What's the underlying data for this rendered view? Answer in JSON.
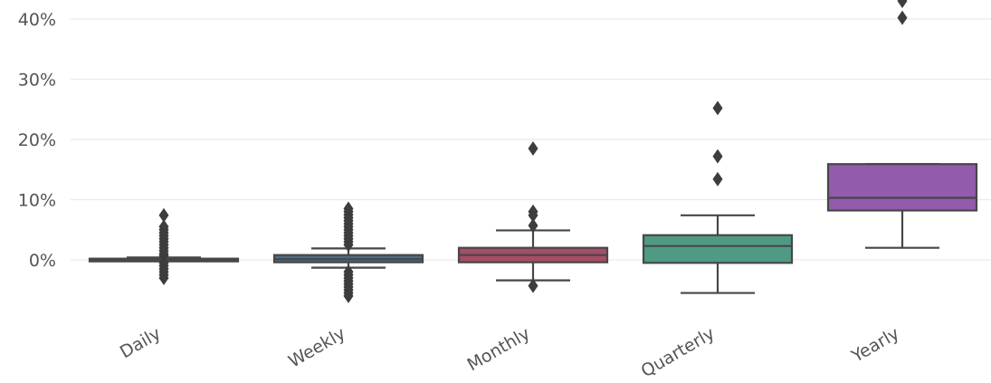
{
  "chart_data": {
    "type": "box",
    "title": "",
    "xlabel": "",
    "ylabel": "",
    "ylim": [
      -0.09,
      0.45
    ],
    "yticks": [
      0,
      0.1,
      0.2,
      0.3,
      0.4
    ],
    "ytick_labels": [
      "0%",
      "10%",
      "20%",
      "30%",
      "40%"
    ],
    "grid": "horizontal",
    "categories": [
      "Daily",
      "Weekly",
      "Monthly",
      "Quarterly",
      "Yearly"
    ],
    "series": [
      {
        "category": "Daily",
        "color": "#555555",
        "whislo": -0.002,
        "q1": -0.001,
        "med": 0.0,
        "q3": 0.002,
        "whishi": 0.004,
        "fliers": [
          0.007,
          0.055,
          0.05,
          0.045,
          0.04,
          0.035,
          0.03,
          0.025,
          0.02,
          0.015,
          0.01,
          -0.005,
          -0.01,
          -0.015,
          -0.02,
          -0.025,
          -0.03,
          0.074
        ]
      },
      {
        "category": "Weekly",
        "color": "#4c6a82",
        "whislo": -0.013,
        "q1": -0.004,
        "med": 0.001,
        "q3": 0.008,
        "whishi": 0.019,
        "fliers": [
          0.025,
          0.03,
          0.035,
          0.04,
          0.045,
          0.05,
          0.055,
          0.06,
          0.065,
          0.07,
          0.075,
          0.08,
          0.085,
          -0.02,
          -0.025,
          -0.03,
          -0.035,
          -0.04,
          -0.045,
          -0.05,
          -0.055,
          -0.06
        ]
      },
      {
        "category": "Monthly",
        "color": "#a64d67",
        "whislo": -0.034,
        "q1": -0.004,
        "med": 0.008,
        "q3": 0.02,
        "whishi": 0.049,
        "fliers": [
          0.185,
          0.08,
          0.074,
          0.057,
          -0.043
        ]
      },
      {
        "category": "Quarterly",
        "color": "#4f9a84",
        "whislo": -0.055,
        "q1": -0.005,
        "med": 0.023,
        "q3": 0.041,
        "whishi": 0.074,
        "fliers": [
          0.252,
          0.172,
          0.134
        ]
      },
      {
        "category": "Yearly",
        "color": "#925bac",
        "whislo": 0.02,
        "q1": 0.082,
        "med": 0.103,
        "q3": 0.159,
        "whishi": 0.159,
        "fliers": [
          0.43,
          0.402
        ]
      }
    ]
  }
}
